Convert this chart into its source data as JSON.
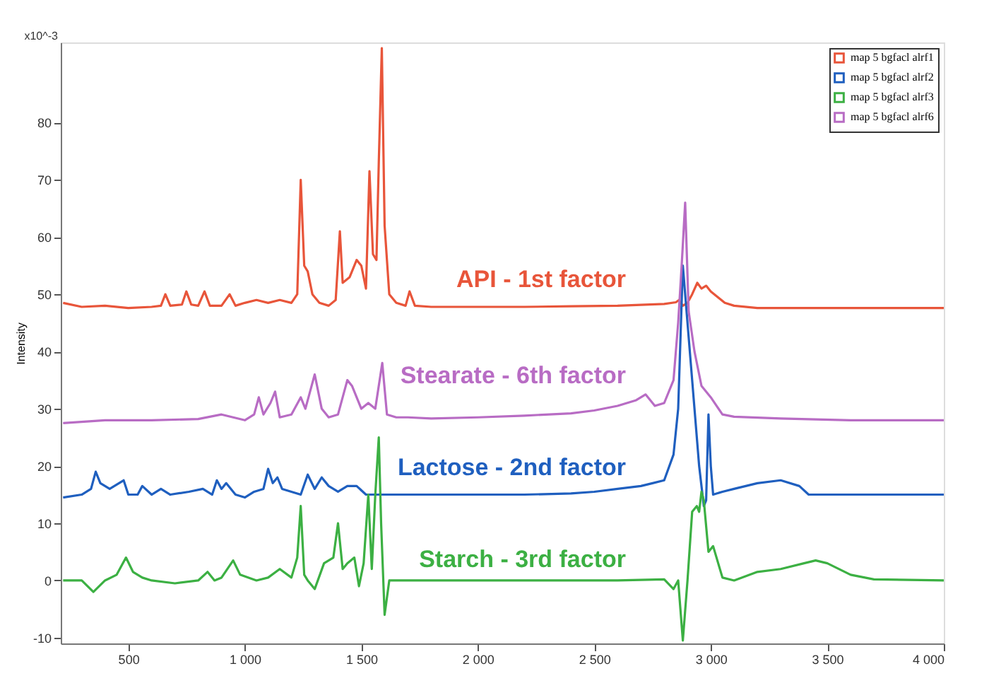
{
  "chart_data": {
    "type": "line",
    "ylabel": "Intensity",
    "xlim": [
      210,
      4000
    ],
    "ylim": [
      -11,
      94
    ],
    "xticks": [
      500,
      {
        "value": 1000,
        "label": "1 000"
      },
      {
        "value": 1500,
        "label": "1 500"
      },
      {
        "value": 2000,
        "label": "2 000"
      },
      {
        "value": 2500,
        "label": "2 500"
      },
      {
        "value": 3000,
        "label": "3 000"
      },
      {
        "value": 3500,
        "label": "3 500"
      },
      {
        "value": 4000,
        "label": "4 000"
      }
    ],
    "yticks": [
      -10,
      0,
      10,
      20,
      30,
      40,
      50,
      60,
      70,
      80
    ],
    "legend": "top right",
    "grid": false,
    "line_style": "solid",
    "marker": "none",
    "annotations": [
      "x10^-3",
      "API - 1st factor",
      "Stearate - 6th factor",
      "Lactose - 2nd factor",
      "Starch - 3rd factor"
    ],
    "series": [
      {
        "name": "map 5 bgfacl alrf1",
        "color": "#e8553a",
        "x": [
          220,
          300,
          400,
          500,
          600,
          640,
          659,
          680,
          730,
          749,
          770,
          800,
          827,
          850,
          900,
          935,
          960,
          1000,
          1050,
          1100,
          1150,
          1200,
          1225,
          1240,
          1255,
          1270,
          1290,
          1320,
          1360,
          1390,
          1408,
          1420,
          1450,
          1480,
          1500,
          1520,
          1535,
          1550,
          1565,
          1575,
          1588,
          1600,
          1620,
          1650,
          1690,
          1707,
          1730,
          1800,
          2000,
          2200,
          2400,
          2600,
          2800,
          2850,
          2864,
          2880,
          2900,
          2920,
          2942,
          2960,
          2980,
          3000,
          3030,
          3060,
          3100,
          3200,
          3400,
          3600,
          3800,
          4000
        ],
        "values": [
          48.5,
          47.8,
          48,
          47.6,
          47.8,
          48,
          50,
          48,
          48.2,
          50.5,
          48.2,
          48,
          50.5,
          48,
          48,
          50,
          48,
          48.5,
          49,
          48.5,
          49,
          48.5,
          50,
          70,
          55,
          54,
          50,
          48.5,
          48,
          49,
          61,
          52,
          53,
          56,
          55,
          51,
          71.5,
          57,
          56,
          73,
          93,
          62,
          50,
          48.5,
          48,
          50.5,
          48,
          47.8,
          47.8,
          47.8,
          47.9,
          48,
          48.3,
          48.6,
          49,
          48,
          48.5,
          50,
          52,
          51,
          51.5,
          50.5,
          49.5,
          48.5,
          48,
          47.6,
          47.6,
          47.6,
          47.6,
          47.6
        ]
      },
      {
        "name": "map 5 bgfacl alrf2",
        "color": "#1f5fbf",
        "x": [
          220,
          300,
          340,
          360,
          380,
          420,
          480,
          500,
          540,
          560,
          600,
          640,
          680,
          760,
          820,
          860,
          880,
          900,
          920,
          960,
          1000,
          1040,
          1080,
          1100,
          1120,
          1140,
          1160,
          1200,
          1240,
          1270,
          1300,
          1330,
          1360,
          1400,
          1440,
          1480,
          1520,
          1600,
          1800,
          2000,
          2200,
          2400,
          2500,
          2600,
          2700,
          2750,
          2800,
          2840,
          2860,
          2880,
          2900,
          2910,
          2930,
          2950,
          2970,
          2980,
          2990,
          3000,
          3010,
          3050,
          3100,
          3200,
          3300,
          3380,
          3420,
          3500,
          3700,
          4000
        ],
        "values": [
          14.5,
          15,
          16,
          19,
          17,
          16,
          17.5,
          15,
          15,
          16.5,
          15,
          16,
          15,
          15.5,
          16,
          15,
          17.5,
          16,
          17,
          15,
          14.5,
          15.5,
          16,
          19.5,
          17,
          18,
          16,
          15.5,
          15,
          18.5,
          16,
          18,
          16.5,
          15.5,
          16.5,
          16.5,
          15,
          15,
          15,
          15,
          15,
          15.2,
          15.5,
          16,
          16.5,
          17,
          17.5,
          22,
          30,
          55,
          45,
          40,
          30,
          20,
          13,
          14,
          29,
          20,
          15,
          15.5,
          16,
          17,
          17.5,
          16.5,
          15,
          15,
          15,
          15
        ]
      },
      {
        "name": "map 5 bgfacl alrf3",
        "color": "#3cb043",
        "x": [
          220,
          300,
          350,
          400,
          450,
          490,
          520,
          560,
          600,
          700,
          800,
          840,
          870,
          900,
          950,
          980,
          1050,
          1100,
          1150,
          1200,
          1225,
          1240,
          1255,
          1270,
          1300,
          1340,
          1380,
          1400,
          1420,
          1440,
          1470,
          1490,
          1510,
          1530,
          1545,
          1560,
          1575,
          1585,
          1600,
          1620,
          1700,
          1800,
          2000,
          2200,
          2400,
          2600,
          2800,
          2840,
          2860,
          2880,
          2900,
          2920,
          2940,
          2950,
          2960,
          2970,
          2990,
          3010,
          3050,
          3100,
          3200,
          3300,
          3400,
          3450,
          3500,
          3600,
          3700,
          4000
        ],
        "values": [
          0,
          0,
          -2,
          0,
          1,
          4,
          1.5,
          0.5,
          0,
          -0.5,
          0,
          1.5,
          0,
          0.5,
          3.5,
          1,
          0,
          0.5,
          2,
          0.5,
          4,
          13,
          1,
          0,
          -1.5,
          3,
          4,
          10,
          2,
          3,
          4,
          -1,
          3,
          15,
          2,
          15,
          25,
          10,
          -6,
          0,
          0,
          0,
          0,
          0,
          0,
          0,
          0.2,
          -1.5,
          0,
          -10.5,
          0,
          12,
          13,
          12,
          15.5,
          14,
          5,
          6,
          0.5,
          0,
          1.5,
          2,
          3,
          3.5,
          3,
          1,
          0.2,
          0
        ]
      },
      {
        "name": "map 5 bgfacl alrf6",
        "color": "#b86cc4",
        "x": [
          220,
          400,
          600,
          800,
          900,
          950,
          1000,
          1040,
          1060,
          1080,
          1110,
          1130,
          1150,
          1200,
          1240,
          1260,
          1280,
          1300,
          1330,
          1360,
          1400,
          1440,
          1460,
          1500,
          1530,
          1560,
          1590,
          1610,
          1650,
          1700,
          1800,
          2000,
          2200,
          2400,
          2500,
          2600,
          2680,
          2720,
          2760,
          2800,
          2840,
          2860,
          2875,
          2890,
          2905,
          2930,
          2960,
          3000,
          3050,
          3100,
          3300,
          3600,
          3800,
          4000
        ],
        "values": [
          27.5,
          28,
          28,
          28.2,
          29,
          28.5,
          28,
          29,
          32,
          29,
          31,
          33,
          28.5,
          29,
          32,
          30,
          33,
          36,
          30,
          28.5,
          29,
          35,
          34,
          30,
          31,
          30,
          38,
          29,
          28.5,
          28.5,
          28.3,
          28.5,
          28.8,
          29.2,
          29.7,
          30.5,
          31.5,
          32.5,
          30.5,
          31,
          35,
          45,
          55,
          66,
          47,
          40,
          34,
          32,
          29,
          28.6,
          28.3,
          28,
          28,
          28
        ]
      }
    ]
  }
}
